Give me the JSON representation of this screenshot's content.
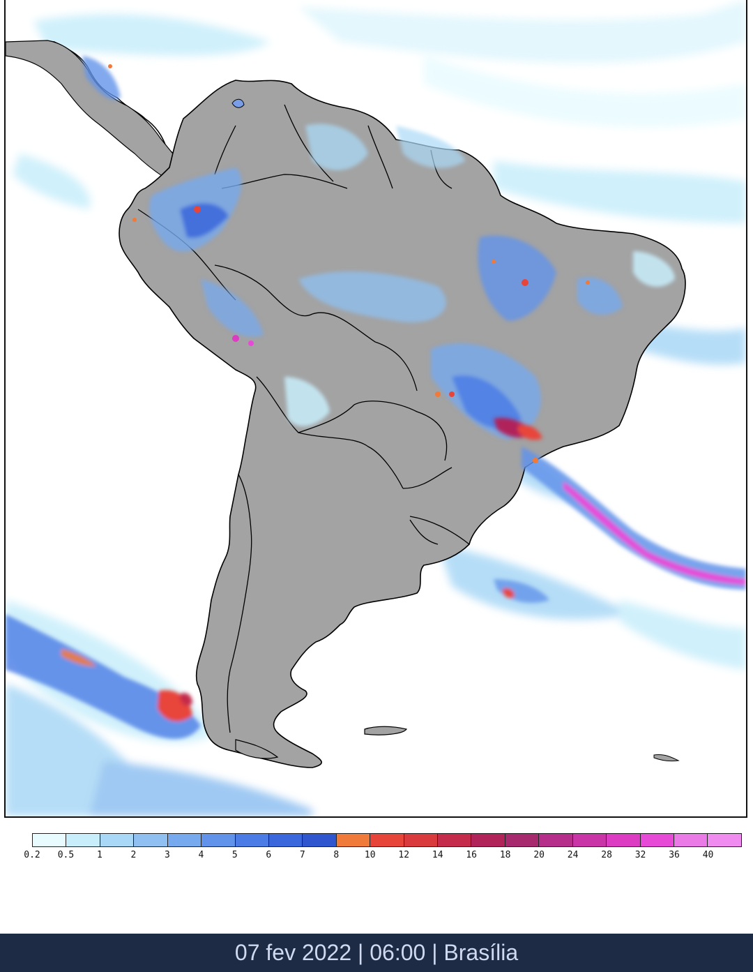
{
  "map": {
    "region": "South America",
    "colors": {
      "land": "#a3a3a3",
      "ocean": "#ffffff",
      "outline": "#000000"
    }
  },
  "legend": {
    "bins": [
      {
        "label": "0.2",
        "color": "#e8fbff"
      },
      {
        "label": "0.5",
        "color": "#c8eefb"
      },
      {
        "label": "1",
        "color": "#a9d8f6"
      },
      {
        "label": "2",
        "color": "#8fc0f1"
      },
      {
        "label": "3",
        "color": "#77a9ee"
      },
      {
        "label": "4",
        "color": "#6193ea"
      },
      {
        "label": "5",
        "color": "#4b7ce6"
      },
      {
        "label": "6",
        "color": "#3b67dc"
      },
      {
        "label": "7",
        "color": "#2f56cf"
      },
      {
        "label": "8",
        "color": "#ef7a3a"
      },
      {
        "label": "10",
        "color": "#e8453a"
      },
      {
        "label": "12",
        "color": "#d93a3d"
      },
      {
        "label": "14",
        "color": "#c52b4a"
      },
      {
        "label": "16",
        "color": "#b0245a"
      },
      {
        "label": "18",
        "color": "#a82a6e"
      },
      {
        "label": "20",
        "color": "#b52e8a"
      },
      {
        "label": "24",
        "color": "#c935a6"
      },
      {
        "label": "28",
        "color": "#dc3cc2"
      },
      {
        "label": "32",
        "color": "#e84ad8"
      },
      {
        "label": "36",
        "color": "#ea7ae6"
      },
      {
        "label": "40",
        "color": ""
      }
    ]
  },
  "footer": {
    "text": "07 fev 2022 | 06:00 | Brasília"
  }
}
